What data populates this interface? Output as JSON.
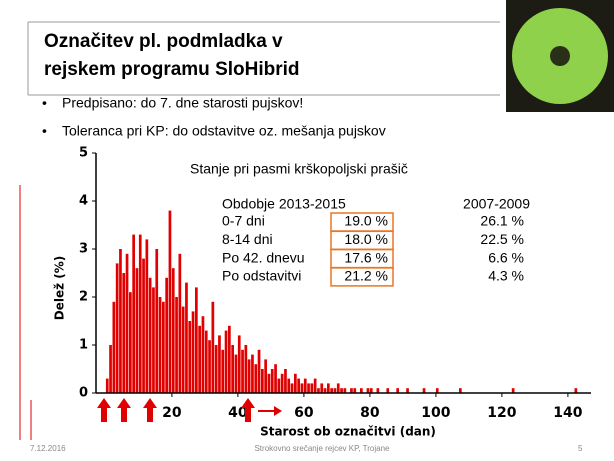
{
  "slide": {
    "title_lines": [
      "Označitev pl. podmladka v",
      "rejskem programu SloHibrid"
    ],
    "bullets": [
      "Predpisano: do 7. dne starosti pujskov!",
      "Toleranca pri KP: do odstavitve oz. mešanja pujskov"
    ],
    "footer": {
      "date": "7.12.2016",
      "event": "Strokovno srečanje rejcev KP, Trojane",
      "page": "5"
    }
  },
  "table": {
    "header": [
      "Obdobje 2013-2015",
      "2007-2009"
    ],
    "rows": [
      [
        "0-7 dni",
        "19.0 %",
        "26.1 %"
      ],
      [
        "8-14 dni",
        "18.0 %",
        "22.5 %"
      ],
      [
        "Po 42. dnevu",
        "17.6 %",
        "6.6 %"
      ],
      [
        "Po odstavitvi",
        "21.2 %",
        "4.3 %"
      ]
    ]
  },
  "chart_data": {
    "type": "histogram",
    "title": "Stanje pri pasmi krškopoljski prašič",
    "x_label": "Starost ob označitvi (dan)",
    "y_label": "Delež (%)",
    "color": "#e00000",
    "bins": [
      0,
      1,
      2,
      3,
      4,
      5,
      6,
      7,
      8,
      9,
      10,
      11,
      12,
      13,
      14,
      15,
      16,
      17,
      18,
      19,
      20,
      21,
      22,
      23,
      24,
      25,
      26,
      27,
      28,
      29,
      30,
      31,
      32,
      33,
      34,
      35,
      36,
      37,
      38,
      39,
      40,
      41,
      42,
      43,
      44,
      45,
      46,
      47,
      48,
      49,
      50,
      51,
      52,
      53,
      54,
      55,
      56,
      57,
      58,
      59,
      60,
      61,
      62,
      63,
      64,
      65,
      66,
      67,
      68,
      69,
      70,
      71,
      72,
      73,
      74,
      75,
      76,
      77,
      78,
      79,
      80,
      81,
      82,
      83,
      84,
      85,
      86,
      87,
      88,
      89,
      90,
      91,
      92,
      93,
      94,
      95,
      96,
      97,
      98,
      99,
      100,
      101,
      102,
      103,
      104,
      105,
      106,
      107,
      108,
      109,
      110,
      111,
      112,
      113,
      114,
      115,
      116,
      117,
      118,
      119,
      120,
      121,
      122,
      123,
      124,
      125,
      126,
      127,
      128,
      129,
      130,
      131,
      132,
      133,
      134,
      135,
      136,
      137,
      138,
      139,
      140,
      141,
      142,
      143,
      144,
      145,
      146
    ],
    "values": [
      0.3,
      1.0,
      1.9,
      2.7,
      3.0,
      2.5,
      2.9,
      2.1,
      3.3,
      2.6,
      3.3,
      2.8,
      3.2,
      2.4,
      2.2,
      3.0,
      2.0,
      1.9,
      2.4,
      3.8,
      2.6,
      2.0,
      2.9,
      1.8,
      2.3,
      1.5,
      1.7,
      2.2,
      1.4,
      1.6,
      1.3,
      1.1,
      1.9,
      1.0,
      1.2,
      0.9,
      1.3,
      1.4,
      1.0,
      0.8,
      1.2,
      0.9,
      1.0,
      0.7,
      0.8,
      0.6,
      0.9,
      0.5,
      0.7,
      0.4,
      0.5,
      0.6,
      0.3,
      0.4,
      0.5,
      0.3,
      0.2,
      0.4,
      0.3,
      0.2,
      0.3,
      0.2,
      0.2,
      0.3,
      0.1,
      0.2,
      0.1,
      0.2,
      0.1,
      0.1,
      0.2,
      0.1,
      0.1,
      0.0,
      0.1,
      0.1,
      0.0,
      0.1,
      0.0,
      0.1,
      0.1,
      0.0,
      0.1,
      0.0,
      0.0,
      0.1,
      0.0,
      0.0,
      0.1,
      0.0,
      0.0,
      0.1,
      0.0,
      0.0,
      0.0,
      0.0,
      0.1,
      0.0,
      0.0,
      0.0,
      0.1,
      0.0,
      0.0,
      0.0,
      0.0,
      0.0,
      0.0,
      0.1,
      0.0,
      0.0,
      0.0,
      0.0,
      0.0,
      0.0,
      0.0,
      0.0,
      0.0,
      0.0,
      0.0,
      0.0,
      0.0,
      0.0,
      0.0,
      0.1,
      0.0,
      0.0,
      0.0,
      0.0,
      0.0,
      0.0,
      0.0,
      0.0,
      0.0,
      0.0,
      0.0,
      0.0,
      0.0,
      0.0,
      0.0,
      0.0,
      0.0,
      0.0,
      0.1,
      0.0,
      0.0,
      0.0
    ],
    "xlim": [
      -3,
      147
    ],
    "ylim": [
      0,
      5
    ],
    "xticks": [
      20,
      40,
      60,
      80,
      100,
      120,
      140
    ],
    "yticks": [
      0,
      1,
      2,
      3,
      4,
      5
    ]
  }
}
